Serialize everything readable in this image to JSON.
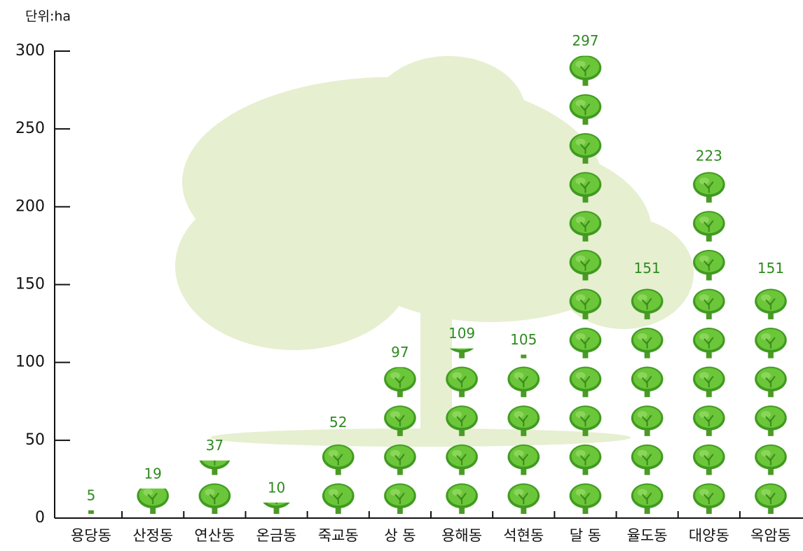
{
  "chart_data": {
    "type": "pictograph",
    "y_axis_label": "단위:ha",
    "categories": [
      "용당동",
      "산정동",
      "연산동",
      "온금동",
      "죽교동",
      "상 동",
      "용해동",
      "석현동",
      "달 동",
      "율도동",
      "대양동",
      "옥암동"
    ],
    "values": [
      5,
      19,
      37,
      10,
      52,
      97,
      109,
      105,
      297,
      151,
      223,
      151
    ],
    "icon_value": 25,
    "color": "#5cb82e",
    "ylim": [
      0,
      300
    ],
    "yticks": [
      0,
      50,
      100,
      150,
      200,
      250,
      300
    ]
  }
}
